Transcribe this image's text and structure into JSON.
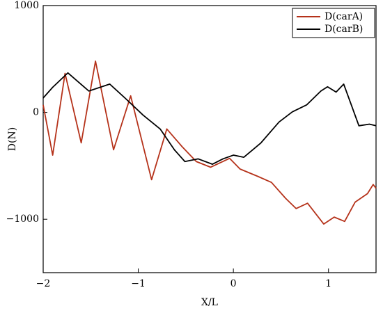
{
  "chart_data": {
    "type": "line",
    "xlabel": "X/L",
    "ylabel": "D(N)",
    "xlim": [
      -2,
      1.5
    ],
    "ylim": [
      -1500,
      1000
    ],
    "xticks": [
      {
        "value": -2,
        "label": "−2"
      },
      {
        "value": -1,
        "label": "−1"
      },
      0,
      1
    ],
    "yticks": [
      {
        "value": -1000,
        "label": "−1000"
      },
      0,
      1000
    ],
    "legend": "upper right",
    "series": [
      {
        "name": "D(carA)",
        "color": "#b5321a",
        "x": [
          -2,
          -1.9,
          -1.77,
          -1.6,
          -1.45,
          -1.26,
          -1.08,
          -0.86,
          -0.7,
          -0.54,
          -0.39,
          -0.24,
          -0.04,
          0.07,
          0.26,
          0.4,
          0.55,
          0.66,
          0.78,
          0.95,
          1.06,
          1.17,
          1.28,
          1.41,
          1.47,
          1.5
        ],
        "values": [
          70,
          -400,
          365,
          -285,
          480,
          -350,
          155,
          -630,
          -155,
          -320,
          -460,
          -513,
          -430,
          -530,
          -600,
          -655,
          -805,
          -900,
          -850,
          -1045,
          -980,
          -1020,
          -840,
          -760,
          -675,
          -710
        ]
      },
      {
        "name": "D(carB)",
        "color": "#000000",
        "x": [
          -2,
          -1.9,
          -1.74,
          -1.52,
          -1.3,
          -1.14,
          -0.95,
          -0.77,
          -0.62,
          -0.51,
          -0.37,
          -0.22,
          -0.11,
          0,
          0.11,
          0.29,
          0.48,
          0.62,
          0.77,
          0.92,
          0.99,
          1.08,
          1.16,
          1.24,
          1.32,
          1.43,
          1.5
        ],
        "values": [
          135,
          235,
          370,
          200,
          265,
          135,
          -25,
          -155,
          -350,
          -460,
          -435,
          -485,
          -435,
          -400,
          -420,
          -285,
          -90,
          5,
          70,
          200,
          240,
          190,
          265,
          70,
          -125,
          -110,
          -125
        ]
      }
    ]
  }
}
